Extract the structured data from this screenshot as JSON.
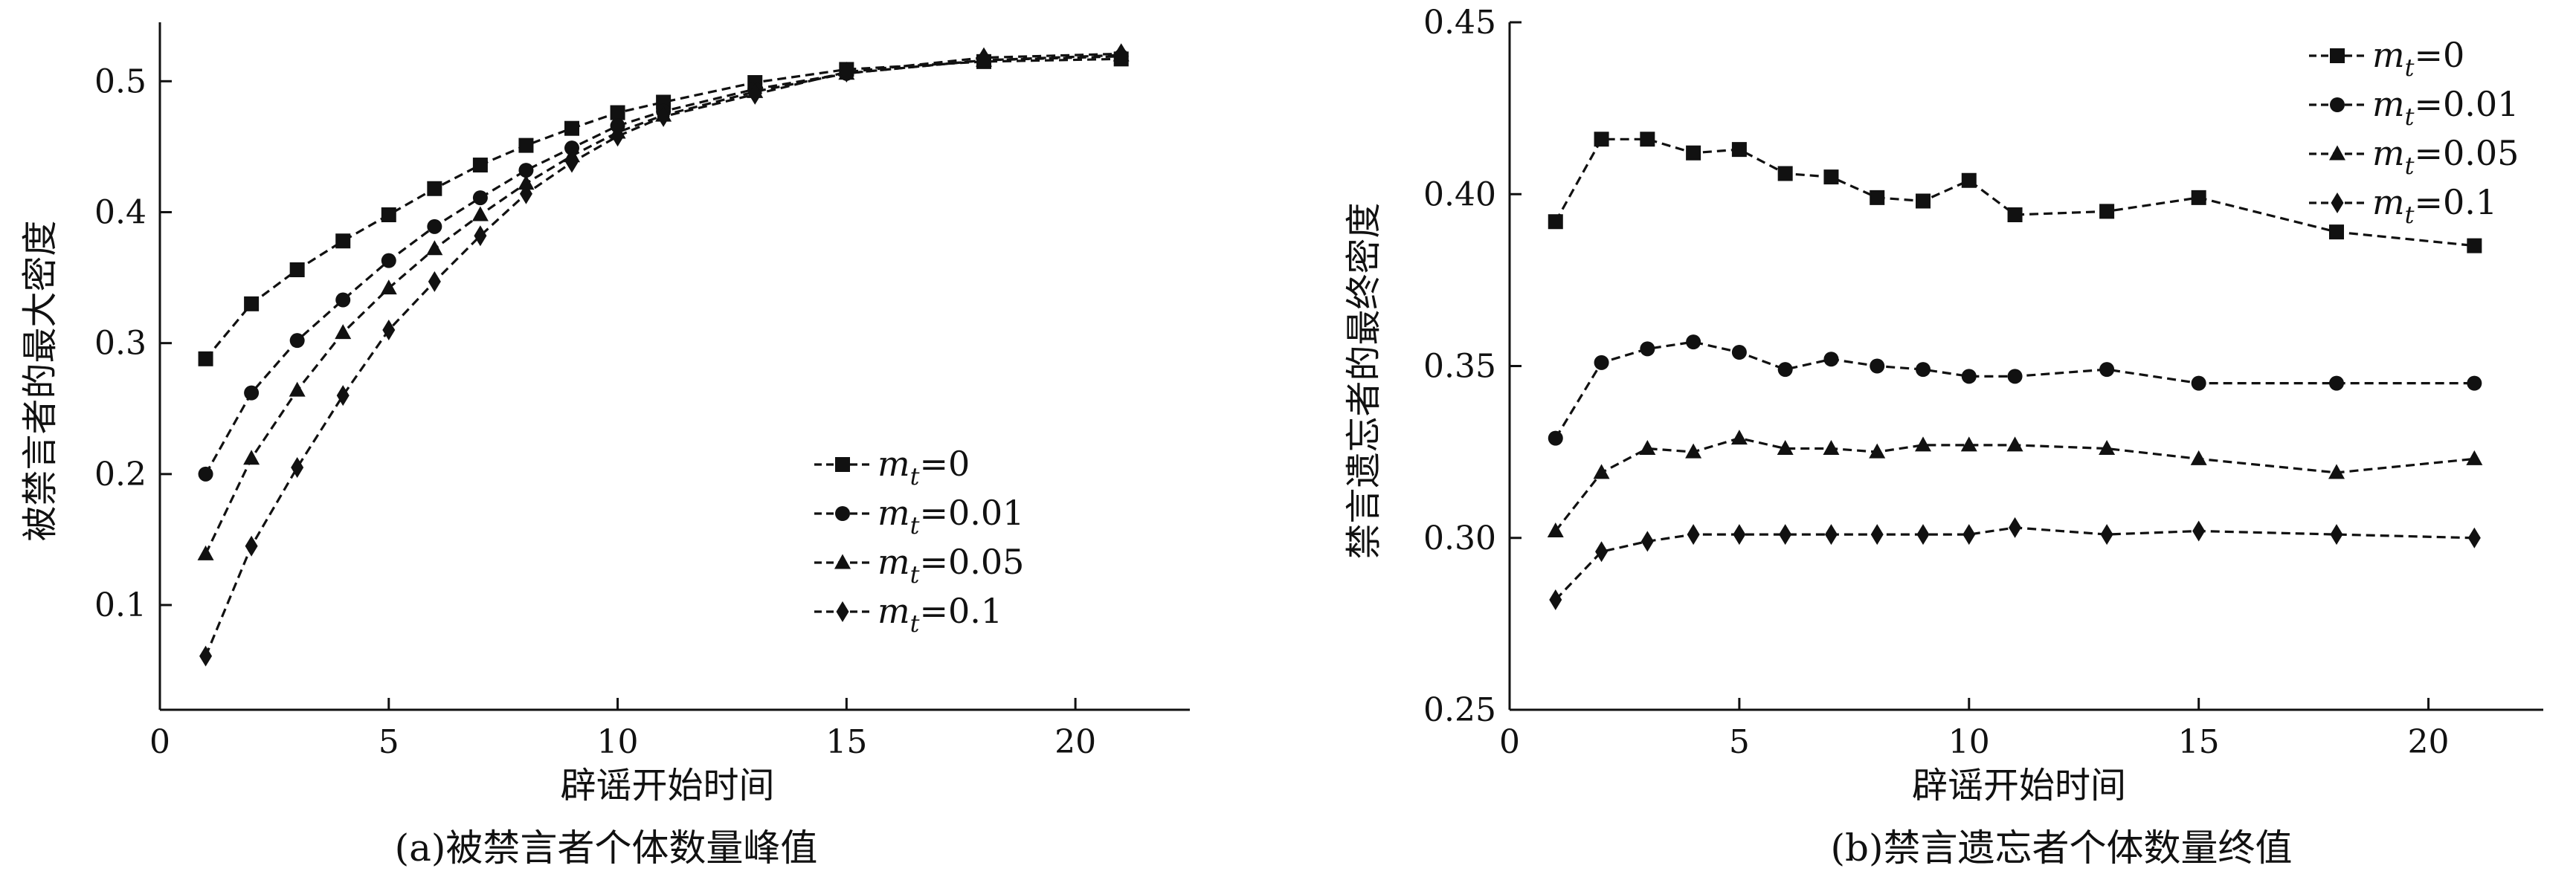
{
  "chart_data": [
    {
      "type": "line",
      "caption": "(a)被禁言者个体数量峰值",
      "xlabel": "辟谣开始时间",
      "ylabel": "被禁言者的最大密度",
      "xlim": [
        0,
        22.5
      ],
      "ylim": [
        0.02,
        0.545
      ],
      "xticks": [
        0,
        5,
        10,
        15,
        20
      ],
      "yticks": [
        0.1,
        0.2,
        0.3,
        0.4,
        0.5
      ],
      "ytick_labels": [
        "0.1",
        "0.2",
        "0.3",
        "0.4",
        "0.5"
      ],
      "legend_position": "center-right",
      "x": [
        1,
        2,
        3,
        4,
        5,
        6,
        7,
        8,
        9,
        10,
        11,
        13,
        15,
        18,
        21
      ],
      "series": [
        {
          "name": "m_t=0",
          "marker": "square",
          "values": [
            0.288,
            0.33,
            0.356,
            0.378,
            0.398,
            0.418,
            0.436,
            0.451,
            0.464,
            0.476,
            0.484,
            0.499,
            0.509,
            0.515,
            0.517
          ]
        },
        {
          "name": "m_t=0.01",
          "marker": "circle",
          "values": [
            0.2,
            0.262,
            0.302,
            0.333,
            0.363,
            0.389,
            0.411,
            0.432,
            0.449,
            0.466,
            0.477,
            0.494,
            0.506,
            0.516,
            0.519
          ]
        },
        {
          "name": "m_t=0.05",
          "marker": "triangle",
          "values": [
            0.139,
            0.212,
            0.264,
            0.308,
            0.342,
            0.372,
            0.398,
            0.422,
            0.443,
            0.461,
            0.474,
            0.492,
            0.506,
            0.516,
            0.52
          ]
        },
        {
          "name": "m_t=0.1",
          "marker": "diamond",
          "values": [
            0.061,
            0.145,
            0.205,
            0.26,
            0.31,
            0.347,
            0.382,
            0.414,
            0.438,
            0.458,
            0.473,
            0.49,
            0.507,
            0.518,
            0.521
          ]
        }
      ]
    },
    {
      "type": "line",
      "caption": "(b)禁言遗忘者个体数量终值",
      "xlabel": "辟谣开始时间",
      "ylabel": "禁言遗忘者的最终密度",
      "xlim": [
        0,
        22.5
      ],
      "ylim": [
        0.25,
        0.45
      ],
      "xticks": [
        0,
        5,
        10,
        15,
        20
      ],
      "yticks": [
        0.25,
        0.3,
        0.35,
        0.4,
        0.45
      ],
      "ytick_labels": [
        "0.25",
        "0.30",
        "0.35",
        "0.40",
        "0.45"
      ],
      "legend_position": "top-right",
      "x": [
        1,
        2,
        3,
        4,
        5,
        6,
        7,
        8,
        9,
        10,
        11,
        13,
        15,
        18,
        21
      ],
      "series": [
        {
          "name": "m_t=0",
          "marker": "square",
          "values": [
            0.392,
            0.416,
            0.416,
            0.412,
            0.413,
            0.406,
            0.405,
            0.399,
            0.398,
            0.404,
            0.394,
            0.395,
            0.399,
            0.389,
            0.385
          ]
        },
        {
          "name": "m_t=0.01",
          "marker": "circle",
          "values": [
            0.329,
            0.351,
            0.355,
            0.357,
            0.354,
            0.349,
            0.352,
            0.35,
            0.349,
            0.347,
            0.347,
            0.349,
            0.345,
            0.345,
            0.345
          ]
        },
        {
          "name": "m_t=0.05",
          "marker": "triangle",
          "values": [
            0.302,
            0.319,
            0.326,
            0.325,
            0.329,
            0.326,
            0.326,
            0.325,
            0.327,
            0.327,
            0.327,
            0.326,
            0.323,
            0.319,
            0.323
          ]
        },
        {
          "name": "m_t=0.1",
          "marker": "diamond",
          "values": [
            0.282,
            0.296,
            0.299,
            0.301,
            0.301,
            0.301,
            0.301,
            0.301,
            0.301,
            0.301,
            0.303,
            0.301,
            0.302,
            0.301,
            0.3
          ]
        }
      ]
    }
  ]
}
